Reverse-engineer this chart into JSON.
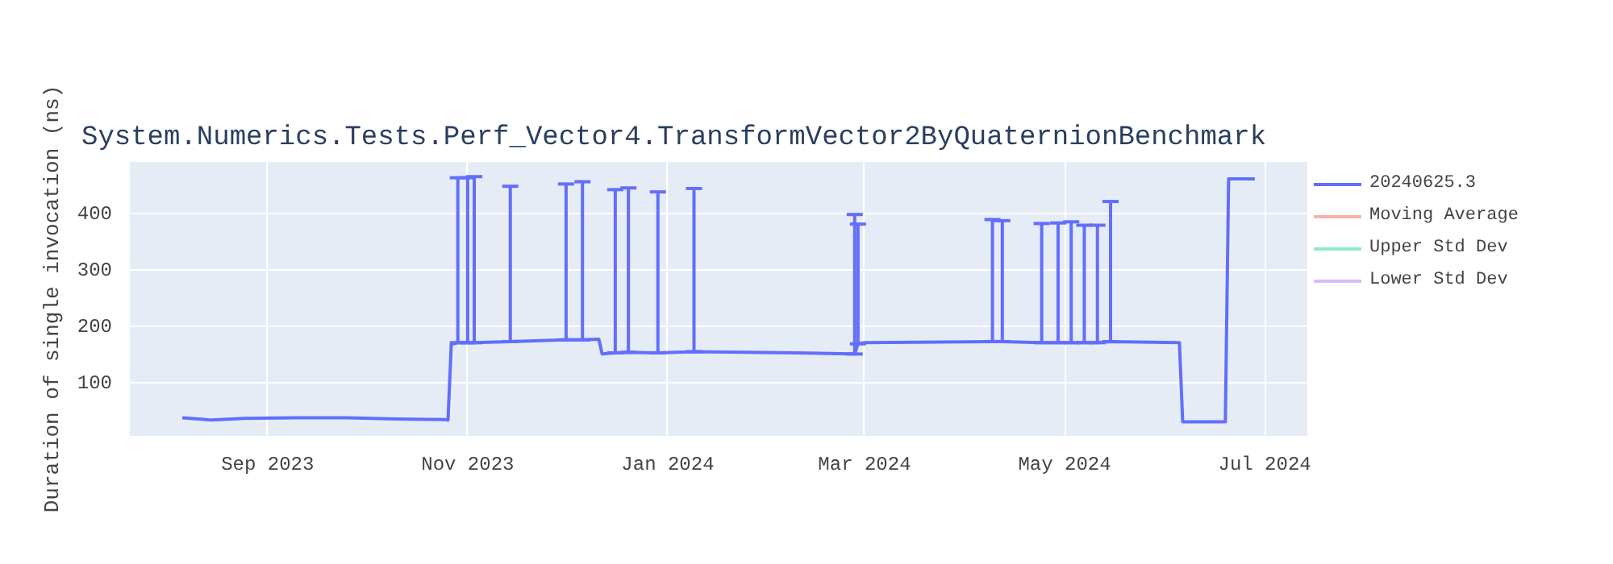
{
  "chart_data": {
    "type": "line",
    "title": "System.Numerics.Tests.Perf_Vector4.TransformVector2ByQuaternionBenchmark",
    "ylabel": "Duration of single invocation (ns)",
    "x": [
      "2023-08-06",
      "2023-08-15",
      "2023-08-25",
      "2023-09-10",
      "2023-09-25",
      "2023-10-10",
      "2023-10-25",
      "2023-10-26",
      "2023-10-27",
      "2023-10-29",
      "2023-11-01",
      "2023-11-03",
      "2023-11-14",
      "2023-12-01",
      "2023-12-06",
      "2023-12-11",
      "2023-12-12",
      "2023-12-16",
      "2023-12-20",
      "2023-12-29",
      "2024-01-09",
      "2024-02-10",
      "2024-02-26",
      "2024-02-27",
      "2024-02-28",
      "2024-03-01",
      "2024-04-09",
      "2024-04-12",
      "2024-04-24",
      "2024-04-29",
      "2024-05-03",
      "2024-05-07",
      "2024-05-11",
      "2024-05-15",
      "2024-06-05",
      "2024-06-06",
      "2024-06-19",
      "2024-06-20",
      "2024-06-28"
    ],
    "series": [
      {
        "name": "20240625.3",
        "color": "#636efa",
        "values": [
          37,
          33,
          36,
          37,
          37,
          35,
          34,
          33,
          167,
          170,
          170,
          170,
          172,
          175,
          175,
          176,
          150,
          152,
          153,
          152,
          154,
          152,
          150,
          150,
          168,
          170,
          172,
          172,
          170,
          170,
          170,
          170,
          170,
          172,
          170,
          30,
          30,
          460,
          460
        ],
        "errors": [
          null,
          null,
          null,
          null,
          null,
          null,
          null,
          null,
          null,
          [
            170,
            462
          ],
          [
            170,
            462
          ],
          [
            170,
            464
          ],
          [
            172,
            447
          ],
          [
            175,
            451
          ],
          [
            175,
            455
          ],
          null,
          null,
          [
            152,
            441
          ],
          [
            153,
            444
          ],
          [
            152,
            437
          ],
          [
            154,
            443
          ],
          null,
          null,
          [
            150,
            397
          ],
          [
            168,
            380
          ],
          null,
          [
            172,
            388
          ],
          [
            172,
            386
          ],
          [
            170,
            381
          ],
          [
            170,
            382
          ],
          [
            170,
            384
          ],
          [
            170,
            378
          ],
          [
            170,
            378
          ],
          [
            172,
            420
          ],
          null,
          null,
          null,
          null,
          null
        ]
      },
      {
        "name": "Moving Average",
        "color": "#ef553b",
        "values": [
          null,
          null,
          null,
          null,
          null,
          null,
          null,
          null,
          null,
          null,
          null,
          null,
          null,
          null,
          null,
          null,
          null,
          null,
          null,
          null,
          null,
          null,
          null,
          null,
          null,
          null,
          null,
          null,
          null,
          null,
          null,
          null,
          null,
          null,
          null,
          null,
          null,
          null,
          null
        ]
      },
      {
        "name": "Upper Std Dev",
        "color": "#00cc96",
        "values": [
          null,
          null,
          null,
          null,
          null,
          null,
          null,
          null,
          null,
          null,
          null,
          null,
          null,
          null,
          null,
          null,
          null,
          null,
          null,
          null,
          null,
          null,
          null,
          null,
          null,
          null,
          null,
          null,
          null,
          null,
          null,
          null,
          null,
          null,
          null,
          null,
          null,
          null,
          null
        ]
      },
      {
        "name": "Lower Std Dev",
        "color": "#ab63fa",
        "values": [
          null,
          null,
          null,
          null,
          null,
          null,
          null,
          null,
          null,
          null,
          null,
          null,
          null,
          null,
          null,
          null,
          null,
          null,
          null,
          null,
          null,
          null,
          null,
          null,
          null,
          null,
          null,
          null,
          null,
          null,
          null,
          null,
          null,
          null,
          null,
          null,
          null,
          null,
          null
        ]
      }
    ],
    "xlim": [
      "2023-07-21",
      "2024-07-14"
    ],
    "xticks": [
      {
        "value": "2023-09-01",
        "label": "Sep 2023"
      },
      {
        "value": "2023-11-01",
        "label": "Nov 2023"
      },
      {
        "value": "2024-01-01",
        "label": "Jan 2024"
      },
      {
        "value": "2024-03-01",
        "label": "Mar 2024"
      },
      {
        "value": "2024-05-01",
        "label": "May 2024"
      },
      {
        "value": "2024-07-01",
        "label": "Jul 2024"
      }
    ],
    "ylim": [
      5,
      490
    ],
    "yticks": [
      100,
      200,
      300,
      400
    ],
    "grid": true,
    "legend": "top right",
    "marker": "none",
    "line_style": "solid"
  }
}
